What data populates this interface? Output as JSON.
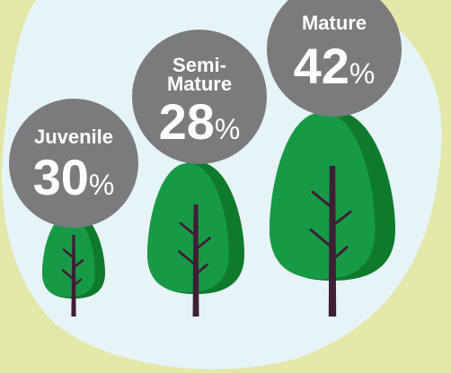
{
  "items": [
    {
      "label_lines": [
        "Juvenile"
      ],
      "value": 30,
      "unit": "%"
    },
    {
      "label_lines": [
        "Semi-",
        "Mature"
      ],
      "value": 28,
      "unit": "%"
    },
    {
      "label_lines": [
        "Mature"
      ],
      "value": 42,
      "unit": "%"
    }
  ]
}
